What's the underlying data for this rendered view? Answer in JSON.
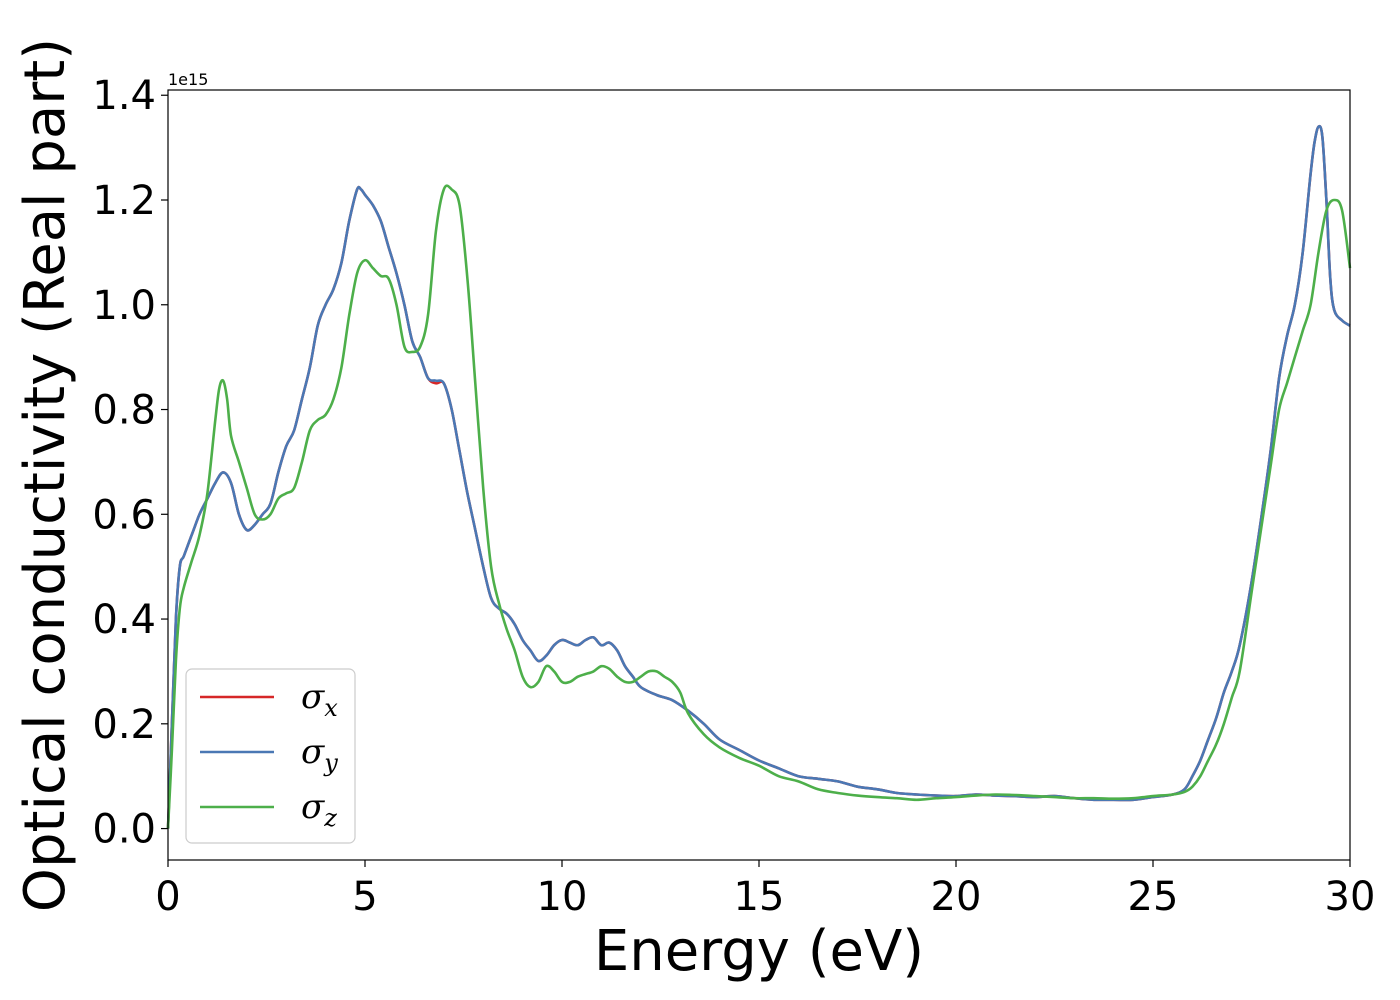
{
  "chart_data": {
    "type": "line",
    "title": "",
    "xlabel": "Energy (eV)",
    "ylabel": "Optical conductivity (Real part)",
    "y_offset_label": "1e15",
    "xlim": [
      0,
      30
    ],
    "ylim": [
      -0.06,
      1.41
    ],
    "xticks": [
      0,
      5,
      10,
      15,
      20,
      25,
      30
    ],
    "yticks": [
      0.0,
      0.2,
      0.4,
      0.6,
      0.8,
      1.0,
      1.2,
      1.4
    ],
    "xtick_labels": [
      "0",
      "5",
      "10",
      "15",
      "20",
      "25",
      "30"
    ],
    "ytick_labels": [
      "0.0",
      "0.2",
      "0.4",
      "0.6",
      "0.8",
      "1.0",
      "1.2",
      "1.4"
    ],
    "grid": false,
    "legend_position": "lower-left",
    "series": [
      {
        "name": "σ",
        "subscript": "x",
        "color": "#d62728",
        "x": [
          0,
          0.1,
          0.2,
          0.3,
          0.4,
          0.6,
          0.8,
          1.0,
          1.2,
          1.4,
          1.6,
          1.8,
          2.0,
          2.2,
          2.4,
          2.6,
          2.8,
          3.0,
          3.2,
          3.4,
          3.6,
          3.8,
          4.0,
          4.2,
          4.4,
          4.6,
          4.8,
          4.9,
          5.0,
          5.2,
          5.4,
          5.6,
          5.8,
          6.0,
          6.2,
          6.4,
          6.6,
          6.8,
          7.0,
          7.2,
          7.4,
          7.6,
          7.8,
          8.0,
          8.2,
          8.4,
          8.6,
          8.8,
          9.0,
          9.2,
          9.4,
          9.6,
          9.8,
          10.0,
          10.2,
          10.4,
          10.6,
          10.8,
          11.0,
          11.2,
          11.4,
          11.6,
          11.8,
          12.0,
          12.4,
          12.8,
          13.2,
          13.6,
          14.0,
          14.5,
          15.0,
          15.5,
          16.0,
          16.5,
          17.0,
          17.5,
          18.0,
          18.5,
          19.0,
          19.5,
          20.0,
          20.5,
          21.0,
          21.5,
          22.0,
          22.5,
          23.0,
          23.5,
          24.0,
          24.5,
          25.0,
          25.5,
          25.8,
          26.0,
          26.2,
          26.4,
          26.6,
          26.8,
          27.0,
          27.2,
          27.5,
          27.8,
          28.0,
          28.2,
          28.4,
          28.6,
          28.8,
          29.0,
          29.1,
          29.2,
          29.3,
          29.4,
          29.5,
          29.6,
          29.8,
          30.0
        ],
        "y": [
          0.0,
          0.2,
          0.4,
          0.5,
          0.52,
          0.56,
          0.6,
          0.63,
          0.66,
          0.68,
          0.66,
          0.6,
          0.57,
          0.58,
          0.6,
          0.62,
          0.68,
          0.73,
          0.76,
          0.82,
          0.88,
          0.96,
          1.0,
          1.03,
          1.08,
          1.16,
          1.22,
          1.22,
          1.21,
          1.19,
          1.16,
          1.11,
          1.06,
          1.0,
          0.93,
          0.9,
          0.86,
          0.85,
          0.85,
          0.8,
          0.72,
          0.64,
          0.57,
          0.5,
          0.44,
          0.42,
          0.41,
          0.39,
          0.36,
          0.34,
          0.32,
          0.33,
          0.35,
          0.36,
          0.355,
          0.35,
          0.36,
          0.365,
          0.35,
          0.355,
          0.34,
          0.31,
          0.29,
          0.27,
          0.255,
          0.245,
          0.225,
          0.2,
          0.17,
          0.15,
          0.13,
          0.115,
          0.1,
          0.095,
          0.09,
          0.08,
          0.075,
          0.068,
          0.065,
          0.063,
          0.062,
          0.065,
          0.063,
          0.062,
          0.06,
          0.062,
          0.058,
          0.055,
          0.055,
          0.055,
          0.06,
          0.065,
          0.075,
          0.1,
          0.13,
          0.17,
          0.21,
          0.26,
          0.3,
          0.35,
          0.47,
          0.62,
          0.73,
          0.86,
          0.94,
          1.0,
          1.1,
          1.25,
          1.31,
          1.34,
          1.32,
          1.2,
          1.05,
          0.99,
          0.97,
          0.96
        ]
      },
      {
        "name": "σ",
        "subscript": "y",
        "color": "#4a78b4",
        "x": [
          0,
          0.1,
          0.2,
          0.3,
          0.4,
          0.6,
          0.8,
          1.0,
          1.2,
          1.4,
          1.6,
          1.8,
          2.0,
          2.2,
          2.4,
          2.6,
          2.8,
          3.0,
          3.2,
          3.4,
          3.6,
          3.8,
          4.0,
          4.2,
          4.4,
          4.6,
          4.8,
          4.9,
          5.0,
          5.2,
          5.4,
          5.6,
          5.8,
          6.0,
          6.2,
          6.4,
          6.6,
          6.8,
          7.0,
          7.2,
          7.4,
          7.6,
          7.8,
          8.0,
          8.2,
          8.4,
          8.6,
          8.8,
          9.0,
          9.2,
          9.4,
          9.6,
          9.8,
          10.0,
          10.2,
          10.4,
          10.6,
          10.8,
          11.0,
          11.2,
          11.4,
          11.6,
          11.8,
          12.0,
          12.4,
          12.8,
          13.2,
          13.6,
          14.0,
          14.5,
          15.0,
          15.5,
          16.0,
          16.5,
          17.0,
          17.5,
          18.0,
          18.5,
          19.0,
          19.5,
          20.0,
          20.5,
          21.0,
          21.5,
          22.0,
          22.5,
          23.0,
          23.5,
          24.0,
          24.5,
          25.0,
          25.5,
          25.8,
          26.0,
          26.2,
          26.4,
          26.6,
          26.8,
          27.0,
          27.2,
          27.5,
          27.8,
          28.0,
          28.2,
          28.4,
          28.6,
          28.8,
          29.0,
          29.1,
          29.2,
          29.3,
          29.4,
          29.5,
          29.6,
          29.8,
          30.0
        ],
        "y": [
          0.0,
          0.2,
          0.4,
          0.5,
          0.52,
          0.56,
          0.6,
          0.63,
          0.66,
          0.68,
          0.66,
          0.6,
          0.57,
          0.58,
          0.6,
          0.62,
          0.68,
          0.73,
          0.76,
          0.82,
          0.88,
          0.96,
          1.0,
          1.03,
          1.08,
          1.16,
          1.22,
          1.22,
          1.21,
          1.19,
          1.16,
          1.11,
          1.06,
          1.0,
          0.93,
          0.9,
          0.86,
          0.855,
          0.85,
          0.8,
          0.72,
          0.64,
          0.57,
          0.5,
          0.44,
          0.42,
          0.41,
          0.39,
          0.36,
          0.34,
          0.32,
          0.33,
          0.35,
          0.36,
          0.355,
          0.35,
          0.36,
          0.365,
          0.35,
          0.355,
          0.34,
          0.31,
          0.29,
          0.27,
          0.255,
          0.245,
          0.225,
          0.2,
          0.17,
          0.15,
          0.13,
          0.115,
          0.1,
          0.095,
          0.09,
          0.08,
          0.075,
          0.068,
          0.065,
          0.063,
          0.062,
          0.065,
          0.063,
          0.062,
          0.06,
          0.062,
          0.058,
          0.055,
          0.055,
          0.055,
          0.06,
          0.065,
          0.075,
          0.1,
          0.13,
          0.17,
          0.21,
          0.26,
          0.3,
          0.35,
          0.47,
          0.62,
          0.73,
          0.86,
          0.94,
          1.0,
          1.1,
          1.25,
          1.31,
          1.34,
          1.32,
          1.2,
          1.05,
          0.99,
          0.97,
          0.96
        ]
      },
      {
        "name": "σ",
        "subscript": "z",
        "color": "#4daf4a",
        "x": [
          0,
          0.1,
          0.2,
          0.3,
          0.4,
          0.6,
          0.8,
          1.0,
          1.2,
          1.3,
          1.4,
          1.5,
          1.6,
          1.8,
          2.0,
          2.2,
          2.4,
          2.6,
          2.8,
          3.0,
          3.2,
          3.4,
          3.6,
          3.8,
          4.0,
          4.2,
          4.4,
          4.6,
          4.8,
          5.0,
          5.2,
          5.4,
          5.6,
          5.8,
          6.0,
          6.2,
          6.4,
          6.6,
          6.8,
          7.0,
          7.2,
          7.4,
          7.6,
          7.8,
          8.0,
          8.2,
          8.4,
          8.6,
          8.8,
          9.0,
          9.2,
          9.4,
          9.6,
          9.8,
          10.0,
          10.2,
          10.4,
          10.6,
          10.8,
          11.0,
          11.2,
          11.4,
          11.6,
          11.8,
          12.0,
          12.2,
          12.4,
          12.6,
          12.8,
          13.0,
          13.2,
          13.6,
          14.0,
          14.5,
          15.0,
          15.5,
          16.0,
          16.5,
          17.0,
          17.5,
          18.0,
          18.5,
          19.0,
          19.5,
          20.0,
          20.5,
          21.0,
          21.5,
          22.0,
          22.5,
          23.0,
          23.5,
          24.0,
          24.5,
          25.0,
          25.5,
          25.8,
          26.0,
          26.2,
          26.4,
          26.6,
          26.8,
          27.0,
          27.2,
          27.5,
          27.8,
          28.0,
          28.2,
          28.4,
          28.6,
          28.8,
          29.0,
          29.2,
          29.4,
          29.6,
          29.8,
          30.0
        ],
        "y": [
          0.0,
          0.15,
          0.32,
          0.42,
          0.46,
          0.51,
          0.56,
          0.64,
          0.78,
          0.84,
          0.855,
          0.82,
          0.75,
          0.7,
          0.65,
          0.6,
          0.59,
          0.6,
          0.63,
          0.64,
          0.65,
          0.7,
          0.76,
          0.78,
          0.79,
          0.82,
          0.88,
          0.98,
          1.06,
          1.085,
          1.07,
          1.055,
          1.05,
          1.0,
          0.92,
          0.91,
          0.92,
          0.98,
          1.14,
          1.22,
          1.22,
          1.19,
          1.05,
          0.85,
          0.65,
          0.5,
          0.43,
          0.38,
          0.34,
          0.29,
          0.27,
          0.28,
          0.31,
          0.3,
          0.28,
          0.28,
          0.29,
          0.295,
          0.3,
          0.31,
          0.305,
          0.29,
          0.28,
          0.28,
          0.29,
          0.3,
          0.3,
          0.29,
          0.28,
          0.26,
          0.22,
          0.18,
          0.155,
          0.135,
          0.12,
          0.1,
          0.09,
          0.075,
          0.068,
          0.063,
          0.06,
          0.058,
          0.055,
          0.058,
          0.06,
          0.063,
          0.065,
          0.064,
          0.062,
          0.06,
          0.058,
          0.058,
          0.057,
          0.058,
          0.062,
          0.065,
          0.07,
          0.08,
          0.1,
          0.13,
          0.16,
          0.2,
          0.25,
          0.3,
          0.45,
          0.6,
          0.7,
          0.8,
          0.85,
          0.9,
          0.95,
          1.0,
          1.1,
          1.18,
          1.2,
          1.18,
          1.07
        ]
      }
    ]
  }
}
